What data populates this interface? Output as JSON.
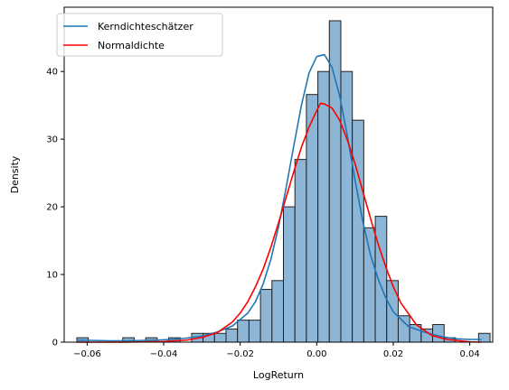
{
  "chart_data": {
    "type": "bar",
    "xlabel": "LogReturn",
    "ylabel": "Density",
    "xlim": [
      -0.066,
      0.046
    ],
    "ylim": [
      0,
      49.5
    ],
    "x_ticks": [
      -0.06,
      -0.04,
      -0.02,
      0.0,
      0.02,
      0.04
    ],
    "x_tick_labels": [
      "−0.06",
      "−0.04",
      "−0.02",
      "0.00",
      "0.02",
      "0.04"
    ],
    "y_ticks": [
      0,
      10,
      20,
      30,
      40
    ],
    "y_tick_labels": [
      "0",
      "10",
      "20",
      "30",
      "40"
    ],
    "grid": false,
    "legend_position": "top-left",
    "histogram": {
      "start": -0.0627,
      "bin_width": 0.003,
      "fill_color": "#8db5d6",
      "edge_color": "#222222",
      "densities": [
        0.65,
        0,
        0,
        0,
        0.65,
        0,
        0.65,
        0,
        0.65,
        0,
        1.3,
        1.3,
        1.3,
        1.95,
        3.25,
        3.25,
        7.8,
        9.1,
        20.0,
        27.0,
        36.6,
        40.0,
        47.5,
        40.0,
        32.8,
        16.9,
        18.6,
        9.1,
        3.9,
        2.6,
        1.95,
        2.6,
        0.65,
        0,
        0,
        1.3
      ]
    },
    "series": [
      {
        "name": "Kerndichteschätzer",
        "color": "#1f77b4",
        "x": [
          -0.0627,
          -0.058,
          -0.054,
          -0.05,
          -0.046,
          -0.042,
          -0.038,
          -0.034,
          -0.03,
          -0.026,
          -0.022,
          -0.018,
          -0.016,
          -0.014,
          -0.012,
          -0.01,
          -0.008,
          -0.006,
          -0.004,
          -0.002,
          0.0,
          0.002,
          0.004,
          0.006,
          0.008,
          0.01,
          0.012,
          0.014,
          0.016,
          0.018,
          0.02,
          0.024,
          0.028,
          0.032,
          0.036,
          0.04,
          0.043
        ],
        "y": [
          0.3,
          0.25,
          0.2,
          0.2,
          0.25,
          0.3,
          0.4,
          0.6,
          0.9,
          1.5,
          2.4,
          4.3,
          6.0,
          8.6,
          12.2,
          17.0,
          22.8,
          29.0,
          35.0,
          39.8,
          42.2,
          42.5,
          40.6,
          36.4,
          30.5,
          24.0,
          18.0,
          13.0,
          9.4,
          6.6,
          4.5,
          2.3,
          1.5,
          0.9,
          0.5,
          0.4,
          0.4
        ]
      },
      {
        "name": "Normaldichte",
        "color": "#ff0000",
        "x": [
          -0.0627,
          -0.05,
          -0.04,
          -0.034,
          -0.03,
          -0.026,
          -0.022,
          -0.02,
          -0.018,
          -0.016,
          -0.014,
          -0.012,
          -0.01,
          -0.008,
          -0.006,
          -0.004,
          -0.002,
          0.0,
          0.001,
          0.002,
          0.004,
          0.006,
          0.008,
          0.01,
          0.012,
          0.014,
          0.016,
          0.018,
          0.02,
          0.022,
          0.026,
          0.03,
          0.034,
          0.04,
          0.043
        ],
        "y": [
          0.0,
          0.0,
          0.1,
          0.3,
          0.7,
          1.4,
          3.0,
          4.3,
          6.0,
          8.2,
          10.8,
          14.0,
          17.6,
          21.4,
          25.2,
          28.8,
          31.8,
          34.2,
          35.3,
          35.2,
          34.6,
          32.8,
          29.9,
          26.4,
          22.4,
          18.4,
          14.6,
          11.2,
          8.2,
          5.8,
          2.6,
          1.0,
          0.4,
          0.05,
          0.0
        ]
      }
    ]
  }
}
